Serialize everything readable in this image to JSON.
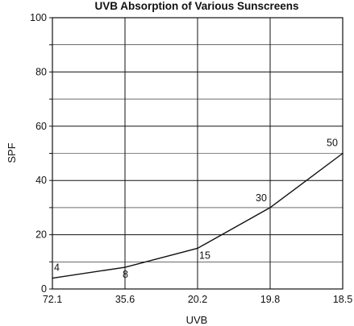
{
  "chart_data": {
    "type": "line",
    "title": "UVB Absorption of Various Sunscreens",
    "xlabel": "UVB",
    "ylabel": "SPF",
    "categories": [
      "72.1",
      "35.6",
      "20.2",
      "19.8",
      "18.5"
    ],
    "values": [
      4,
      8,
      15,
      30,
      50
    ],
    "data_labels": [
      "4",
      "8",
      "15",
      "30",
      "50"
    ],
    "ylim": [
      0,
      100
    ],
    "y_ticks": [
      "0",
      "20",
      "40",
      "60",
      "80",
      "100"
    ],
    "y_tick_values": [
      0,
      20,
      40,
      60,
      80,
      100
    ],
    "grid": true,
    "legend": "none"
  }
}
